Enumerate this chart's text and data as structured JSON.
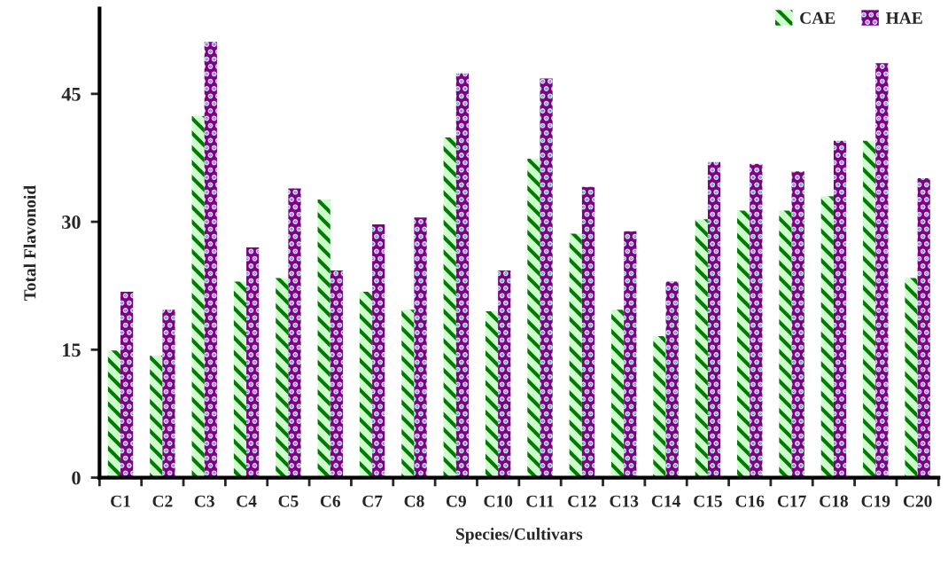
{
  "chart_data": {
    "type": "bar",
    "xlabel": "Species/Cultivars",
    "ylabel": "Total Flavonoid",
    "categories": [
      "C1",
      "C2",
      "C3",
      "C4",
      "C5",
      "C6",
      "C7",
      "C8",
      "C9",
      "C10",
      "C11",
      "C12",
      "C13",
      "C14",
      "C15",
      "C16",
      "C17",
      "C18",
      "C19",
      "C20"
    ],
    "series": [
      {
        "name": "CAE",
        "color": "#ccffcc",
        "values": [
          14.9,
          14.3,
          42.4,
          23.0,
          23.4,
          32.6,
          21.8,
          19.7,
          39.9,
          19.5,
          37.4,
          28.6,
          19.7,
          16.6,
          30.3,
          31.3,
          31.3,
          33.0,
          39.5,
          23.4
        ]
      },
      {
        "name": "HAE",
        "color": "#800080",
        "values": [
          21.8,
          19.7,
          51.1,
          27.0,
          33.9,
          24.3,
          29.7,
          30.5,
          47.4,
          24.3,
          46.8,
          34.1,
          28.9,
          23.0,
          37.0,
          36.8,
          35.9,
          39.5,
          48.6,
          35.1
        ]
      }
    ],
    "ylim": [
      0,
      55
    ],
    "yticks": [
      0,
      15,
      30,
      45
    ],
    "grid": false,
    "legend": "top right"
  }
}
